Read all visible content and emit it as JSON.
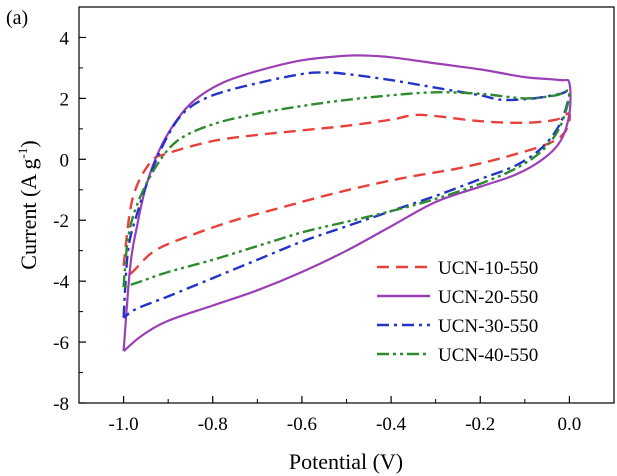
{
  "panel_label": "(a)",
  "chart_data": {
    "type": "line",
    "xlabel": "Potential (V)",
    "ylabel": "Current (A g",
    "ylabel_sup": "-1",
    "ylabel_close": ")",
    "xlim": [
      -1.1,
      0.1
    ],
    "ylim": [
      -8,
      5
    ],
    "x_ticks": [
      -1.0,
      -0.8,
      -0.6,
      -0.4,
      -0.2,
      0.0
    ],
    "x_tick_labels": [
      "-1.0",
      "-0.8",
      "-0.6",
      "-0.4",
      "-0.2",
      "0.0"
    ],
    "y_ticks": [
      -8,
      -6,
      -4,
      -2,
      0,
      2,
      4
    ],
    "y_tick_labels": [
      "-8",
      "-6",
      "-4",
      "-2",
      "0",
      "2",
      "4"
    ],
    "grid": false,
    "legend_position": "bottom-right",
    "series": [
      {
        "name": "UCN-10-550",
        "color": "#e8413c",
        "dash": "dash",
        "points": [
          [
            -1.0,
            -3.5
          ],
          [
            -0.98,
            -1.3
          ],
          [
            -0.94,
            -0.1
          ],
          [
            -0.9,
            0.2
          ],
          [
            -0.8,
            0.6
          ],
          [
            -0.7,
            0.8
          ],
          [
            -0.6,
            0.95
          ],
          [
            -0.5,
            1.1
          ],
          [
            -0.4,
            1.3
          ],
          [
            -0.35,
            1.45
          ],
          [
            -0.3,
            1.42
          ],
          [
            -0.2,
            1.25
          ],
          [
            -0.1,
            1.2
          ],
          [
            -0.03,
            1.3
          ],
          [
            0.0,
            1.5
          ],
          [
            -0.01,
            0.9
          ],
          [
            -0.05,
            0.5
          ],
          [
            -0.15,
            0.05
          ],
          [
            -0.25,
            -0.3
          ],
          [
            -0.35,
            -0.55
          ],
          [
            -0.45,
            -0.85
          ],
          [
            -0.55,
            -1.2
          ],
          [
            -0.65,
            -1.6
          ],
          [
            -0.75,
            -2.0
          ],
          [
            -0.85,
            -2.5
          ],
          [
            -0.93,
            -3.0
          ],
          [
            -0.98,
            -3.7
          ],
          [
            -1.0,
            -3.9
          ]
        ]
      },
      {
        "name": "UCN-20-550",
        "color": "#9b3fb5",
        "dash": "solid",
        "points": [
          [
            -1.0,
            -6.3
          ],
          [
            -0.985,
            -3.5
          ],
          [
            -0.97,
            -2.2
          ],
          [
            -0.95,
            -0.9
          ],
          [
            -0.92,
            0.3
          ],
          [
            -0.88,
            1.3
          ],
          [
            -0.84,
            1.95
          ],
          [
            -0.78,
            2.5
          ],
          [
            -0.7,
            2.9
          ],
          [
            -0.6,
            3.25
          ],
          [
            -0.5,
            3.4
          ],
          [
            -0.45,
            3.4
          ],
          [
            -0.4,
            3.35
          ],
          [
            -0.3,
            3.15
          ],
          [
            -0.2,
            2.95
          ],
          [
            -0.1,
            2.7
          ],
          [
            -0.02,
            2.6
          ],
          [
            0.0,
            2.5
          ],
          [
            0.0,
            1.5
          ],
          [
            -0.02,
            0.6
          ],
          [
            -0.06,
            0.0
          ],
          [
            -0.12,
            -0.5
          ],
          [
            -0.2,
            -0.9
          ],
          [
            -0.3,
            -1.4
          ],
          [
            -0.4,
            -2.2
          ],
          [
            -0.5,
            -3.0
          ],
          [
            -0.6,
            -3.7
          ],
          [
            -0.7,
            -4.3
          ],
          [
            -0.8,
            -4.8
          ],
          [
            -0.9,
            -5.3
          ],
          [
            -0.96,
            -5.8
          ],
          [
            -1.0,
            -6.3
          ]
        ]
      },
      {
        "name": "UCN-30-550",
        "color": "#2433c7",
        "dash": "dashdot",
        "points": [
          [
            -1.0,
            -5.2
          ],
          [
            -0.99,
            -3.0
          ],
          [
            -0.97,
            -1.8
          ],
          [
            -0.94,
            -0.5
          ],
          [
            -0.9,
            0.8
          ],
          [
            -0.86,
            1.6
          ],
          [
            -0.8,
            2.1
          ],
          [
            -0.7,
            2.5
          ],
          [
            -0.6,
            2.8
          ],
          [
            -0.55,
            2.85
          ],
          [
            -0.5,
            2.8
          ],
          [
            -0.4,
            2.6
          ],
          [
            -0.3,
            2.35
          ],
          [
            -0.2,
            2.1
          ],
          [
            -0.15,
            1.95
          ],
          [
            -0.08,
            2.0
          ],
          [
            -0.02,
            2.15
          ],
          [
            0.0,
            2.2
          ],
          [
            -0.02,
            1.2
          ],
          [
            -0.06,
            0.4
          ],
          [
            -0.12,
            -0.2
          ],
          [
            -0.2,
            -0.65
          ],
          [
            -0.3,
            -1.2
          ],
          [
            -0.4,
            -1.7
          ],
          [
            -0.5,
            -2.2
          ],
          [
            -0.6,
            -2.7
          ],
          [
            -0.7,
            -3.3
          ],
          [
            -0.8,
            -3.9
          ],
          [
            -0.9,
            -4.5
          ],
          [
            -0.97,
            -4.9
          ],
          [
            -1.0,
            -5.2
          ]
        ]
      },
      {
        "name": "UCN-40-550",
        "color": "#2e8b2e",
        "dash": "dashdotdot",
        "points": [
          [
            -1.0,
            -4.2
          ],
          [
            -0.99,
            -2.6
          ],
          [
            -0.97,
            -1.5
          ],
          [
            -0.93,
            -0.3
          ],
          [
            -0.88,
            0.6
          ],
          [
            -0.8,
            1.15
          ],
          [
            -0.7,
            1.5
          ],
          [
            -0.6,
            1.75
          ],
          [
            -0.5,
            1.95
          ],
          [
            -0.4,
            2.1
          ],
          [
            -0.3,
            2.2
          ],
          [
            -0.2,
            2.15
          ],
          [
            -0.1,
            2.0
          ],
          [
            -0.03,
            2.1
          ],
          [
            0.0,
            2.2
          ],
          [
            -0.02,
            1.1
          ],
          [
            -0.06,
            0.3
          ],
          [
            -0.12,
            -0.3
          ],
          [
            -0.2,
            -0.8
          ],
          [
            -0.3,
            -1.3
          ],
          [
            -0.4,
            -1.7
          ],
          [
            -0.5,
            -2.05
          ],
          [
            -0.6,
            -2.4
          ],
          [
            -0.7,
            -2.85
          ],
          [
            -0.8,
            -3.3
          ],
          [
            -0.9,
            -3.7
          ],
          [
            -0.96,
            -4.0
          ],
          [
            -1.0,
            -4.2
          ]
        ]
      }
    ]
  }
}
